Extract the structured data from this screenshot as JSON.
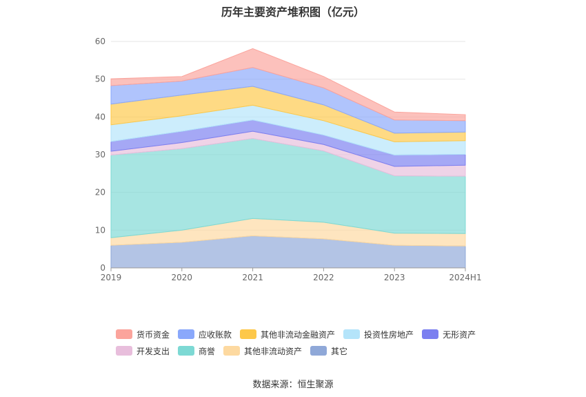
{
  "chart_data": {
    "type": "area",
    "stacked": true,
    "title": "历年主要资产堆积图（亿元）",
    "categories": [
      "2019",
      "2020",
      "2021",
      "2022",
      "2023",
      "2024H1"
    ],
    "ylim": [
      0,
      60
    ],
    "yticks": [
      0,
      10,
      20,
      30,
      40,
      50,
      60
    ],
    "grid": true,
    "legend_position": "bottom",
    "series": [
      {
        "name": "其它",
        "color": "#8fa8d8",
        "values": [
          6.0,
          6.8,
          8.5,
          7.7,
          6.0,
          5.8
        ]
      },
      {
        "name": "其他非流动资产",
        "color": "#fdd9a0",
        "values": [
          2.0,
          3.2,
          4.6,
          4.4,
          3.2,
          3.3
        ]
      },
      {
        "name": "商誉",
        "color": "#7dd9d4",
        "values": [
          21.9,
          21.6,
          21.2,
          18.9,
          15.2,
          15.2
        ]
      },
      {
        "name": "开发支出",
        "color": "#e8bedc",
        "values": [
          1.0,
          1.6,
          1.9,
          1.7,
          2.5,
          2.9
        ]
      },
      {
        "name": "无形资产",
        "color": "#7b7ff0",
        "values": [
          2.6,
          3.0,
          3.0,
          2.5,
          3.0,
          2.9
        ]
      },
      {
        "name": "投资性房地产",
        "color": "#b4e4fa",
        "values": [
          4.4,
          4.1,
          3.9,
          3.8,
          3.5,
          3.6
        ]
      },
      {
        "name": "其他非流动金融资产",
        "color": "#fdc84a",
        "values": [
          5.5,
          5.5,
          5.0,
          4.2,
          2.3,
          2.3
        ]
      },
      {
        "name": "应收账款",
        "color": "#8aa8fb",
        "values": [
          4.9,
          3.7,
          5.0,
          4.5,
          3.5,
          3.0
        ]
      },
      {
        "name": "货币资金",
        "color": "#fba49c",
        "values": [
          1.8,
          1.2,
          5.0,
          3.0,
          2.1,
          1.6
        ]
      }
    ]
  },
  "legend": {
    "rows": [
      [
        {
          "label": "货币资金",
          "color": "#fba49c"
        },
        {
          "label": "应收账款",
          "color": "#8aa8fb"
        },
        {
          "label": "其他非流动金融资产",
          "color": "#fdc84a"
        },
        {
          "label": "投资性房地产",
          "color": "#b4e4fa"
        },
        {
          "label": "无形资产",
          "color": "#7b7ff0"
        }
      ],
      [
        {
          "label": "开发支出",
          "color": "#e8bedc"
        },
        {
          "label": "商誉",
          "color": "#7dd9d4"
        },
        {
          "label": "其他非流动资产",
          "color": "#fdd9a0"
        },
        {
          "label": "其它",
          "color": "#8fa8d8"
        }
      ]
    ]
  },
  "source": "数据来源：恒生聚源"
}
